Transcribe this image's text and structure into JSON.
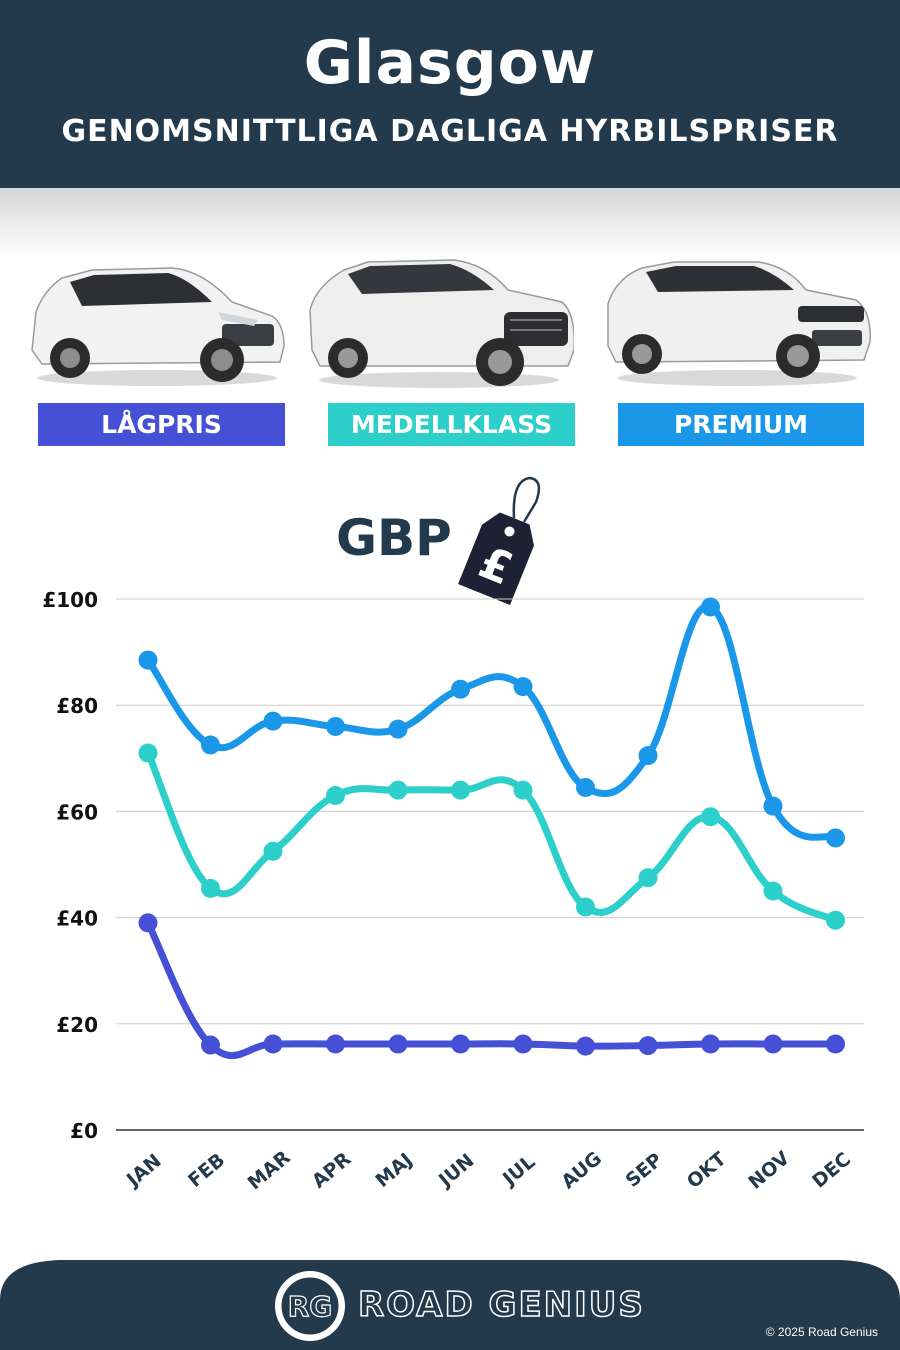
{
  "header": {
    "title": "Glasgow",
    "subtitle": "GENOMSNITTLIGA DAGLIGA HYRBILSPRISER"
  },
  "categories_labels": {
    "budget": "LÅGPRIS",
    "midsize": "MEDELLKLASS",
    "premium": "PREMIUM"
  },
  "currency": {
    "label": "GBP",
    "symbol": "£"
  },
  "colors": {
    "header_bg": "#233a4c",
    "budget": "#4650d6",
    "midsize": "#2ccfc9",
    "premium": "#1b97ea",
    "grid": "#cccccc",
    "text": "#233a4c"
  },
  "chart_data": {
    "type": "line",
    "title": "",
    "xlabel": "",
    "ylabel": "",
    "categories": [
      "JAN",
      "FEB",
      "MAR",
      "APR",
      "MAJ",
      "JUN",
      "JUL",
      "AUG",
      "SEP",
      "OKT",
      "NOV",
      "DEC"
    ],
    "ylim": [
      0,
      100
    ],
    "yticks": [
      0,
      20,
      40,
      60,
      80,
      100
    ],
    "ytick_labels": [
      "£0",
      "£20",
      "£40",
      "£60",
      "£80",
      "£100"
    ],
    "grid": true,
    "legend": "top, as labelled car images",
    "series": [
      {
        "name": "PREMIUM",
        "color": "#1b97ea",
        "values": [
          88.5,
          72.5,
          77,
          76,
          75.5,
          83,
          83.5,
          64.5,
          70.5,
          98.5,
          61,
          55
        ]
      },
      {
        "name": "MEDELLKLASS",
        "color": "#2ccfc9",
        "values": [
          71,
          45.5,
          52.5,
          63,
          64,
          64,
          64,
          42,
          47.5,
          59,
          45,
          39.5
        ]
      },
      {
        "name": "LÅGPRIS",
        "color": "#4650d6",
        "values": [
          39,
          16,
          16.2,
          16.2,
          16.2,
          16.2,
          16.2,
          15.8,
          15.9,
          16.2,
          16.2,
          16.2
        ]
      }
    ]
  },
  "footer": {
    "badge": "RG",
    "brand": "ROAD GENIUS",
    "copyright": "© 2025 Road Genius"
  }
}
